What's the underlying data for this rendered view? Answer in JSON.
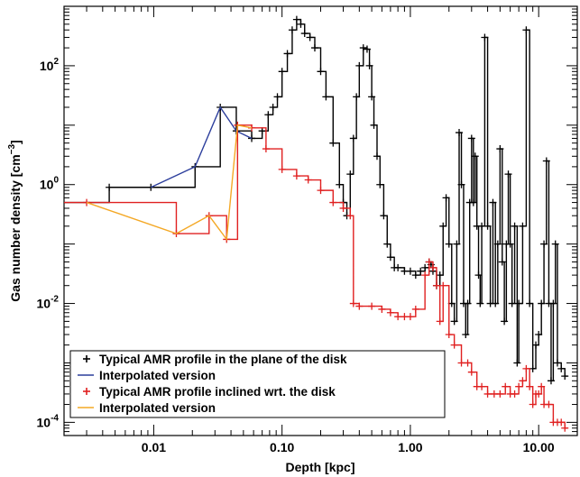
{
  "chart_data": {
    "type": "line",
    "xlabel": "Depth [kpc]",
    "ylabel": "Gas number density [cm⁻³]",
    "ylabel_parts": {
      "main": "Gas number density [cm",
      "sup": "−3",
      "close": "]"
    },
    "x_scale": "log",
    "y_scale": "log",
    "xlim": [
      0.002,
      20
    ],
    "ylim": [
      6e-05,
      1000
    ],
    "x_ticks": [
      {
        "value": 0.01,
        "label": "0.01"
      },
      {
        "value": 0.1,
        "label": "0.10"
      },
      {
        "value": 1,
        "label": "1.00"
      },
      {
        "value": 10,
        "label": "10.00"
      }
    ],
    "y_ticks": [
      {
        "value": 100,
        "base": "10",
        "exp": "2"
      },
      {
        "value": 1,
        "base": "10",
        "exp": "0"
      },
      {
        "value": 0.01,
        "base": "10",
        "exp": "-2"
      },
      {
        "value": 0.0001,
        "base": "10",
        "exp": "-4"
      }
    ],
    "legend_position": "bottom-left",
    "series": [
      {
        "name": "Typical AMR profile in the plane of the disk",
        "color": "#000000",
        "style": "step-plus",
        "x": [
          0.002,
          0.0045,
          0.0095,
          0.021,
          0.033,
          0.044,
          0.058,
          0.07,
          0.078,
          0.085,
          0.092,
          0.1,
          0.11,
          0.12,
          0.13,
          0.14,
          0.15,
          0.165,
          0.18,
          0.2,
          0.22,
          0.25,
          0.28,
          0.3,
          0.32,
          0.34,
          0.36,
          0.38,
          0.4,
          0.43,
          0.46,
          0.48,
          0.5,
          0.52,
          0.55,
          0.58,
          0.62,
          0.66,
          0.7,
          0.75,
          0.8,
          0.9,
          1.0,
          1.1,
          1.2,
          1.3,
          1.4,
          1.45,
          1.5,
          1.6,
          1.7,
          1.8,
          1.9,
          2.0,
          2.1,
          2.2,
          2.3,
          2.4,
          2.5,
          2.6,
          2.7,
          2.8,
          2.9,
          3.0,
          3.1,
          3.2,
          3.3,
          3.4,
          3.5,
          3.6,
          3.8,
          4.0,
          4.2,
          4.4,
          4.6,
          4.8,
          5.0,
          5.2,
          5.4,
          5.6,
          5.8,
          6.0,
          6.2,
          6.5,
          6.8,
          7.0,
          7.5,
          8.0,
          8.5,
          9.0,
          9.5,
          10.0,
          10.5,
          11.0,
          11.5,
          12.0,
          12.5,
          13.0,
          13.5,
          14.0,
          15.0,
          16.0
        ],
        "y": [
          0.5,
          0.9,
          0.9,
          2.0,
          20,
          8,
          6,
          8,
          15,
          20,
          30,
          80,
          160,
          400,
          600,
          500,
          350,
          300,
          200,
          80,
          30,
          5,
          1.0,
          0.5,
          0.3,
          1.5,
          6,
          30,
          100,
          200,
          190,
          100,
          30,
          10,
          3,
          1,
          0.3,
          0.1,
          0.06,
          0.04,
          0.04,
          0.035,
          0.035,
          0.03,
          0.035,
          0.04,
          0.05,
          0.045,
          0.035,
          0.02,
          0.03,
          0.2,
          0.6,
          0.1,
          0.01,
          0.005,
          0.1,
          7.5,
          1.0,
          0.01,
          0.003,
          0.01,
          0.5,
          6,
          0.5,
          3,
          0.2,
          0.03,
          0.01,
          0.2,
          300,
          0.2,
          0.01,
          0.5,
          0.01,
          0.1,
          4,
          0.05,
          0.005,
          0.1,
          1.5,
          0.1,
          0.01,
          0.2,
          0.001,
          0.01,
          0.2,
          400,
          0.01,
          0.0008,
          0.002,
          0.003,
          0.01,
          0.1,
          2.5,
          0.01,
          0.0005,
          0.01,
          0.1,
          0.001,
          0.0008,
          0.0006
        ]
      },
      {
        "name": "Interpolated version",
        "color": "#2c3e9c",
        "style": "line",
        "x": [
          0.0095,
          0.021,
          0.033,
          0.044,
          0.058
        ],
        "y": [
          0.9,
          2.0,
          20,
          8,
          6
        ]
      },
      {
        "name": "Typical AMR profile inclined wrt. the disk",
        "color": "#e02020",
        "style": "step-plus",
        "x": [
          0.002,
          0.003,
          0.015,
          0.027,
          0.037,
          0.045,
          0.058,
          0.075,
          0.1,
          0.13,
          0.16,
          0.2,
          0.25,
          0.3,
          0.34,
          0.36,
          0.4,
          0.5,
          0.6,
          0.7,
          0.8,
          0.9,
          1.0,
          1.1,
          1.3,
          1.4,
          1.5,
          1.6,
          1.7,
          1.8,
          2.0,
          2.2,
          2.5,
          2.8,
          3.0,
          3.3,
          3.6,
          4.0,
          4.5,
          5.0,
          5.5,
          6.0,
          6.5,
          7.0,
          7.5,
          8.0,
          8.5,
          9.0,
          9.5,
          10.0,
          10.5,
          11.0,
          12.0,
          13.0,
          14.0,
          15.0,
          16.0
        ],
        "y": [
          0.5,
          0.5,
          0.15,
          0.3,
          0.12,
          10,
          9,
          4,
          1.8,
          1.4,
          1.2,
          0.8,
          0.5,
          0.4,
          0.3,
          0.01,
          0.009,
          0.009,
          0.008,
          0.007,
          0.006,
          0.006,
          0.006,
          0.008,
          0.03,
          0.05,
          0.04,
          0.02,
          0.005,
          0.02,
          0.003,
          0.002,
          0.001,
          0.001,
          0.0007,
          0.0004,
          0.0004,
          0.0003,
          0.0003,
          0.0003,
          0.0004,
          0.0003,
          0.0003,
          0.0004,
          0.0005,
          0.0008,
          0.0004,
          0.0002,
          0.0003,
          0.0003,
          0.0004,
          0.0002,
          0.0002,
          0.0001,
          0.0001,
          0.0001,
          8e-05
        ]
      },
      {
        "name": "Interpolated version",
        "color": "#f4a825",
        "style": "line",
        "x": [
          0.003,
          0.015,
          0.027,
          0.037,
          0.045,
          0.058
        ],
        "y": [
          0.5,
          0.15,
          0.3,
          0.12,
          10,
          9
        ]
      }
    ]
  }
}
